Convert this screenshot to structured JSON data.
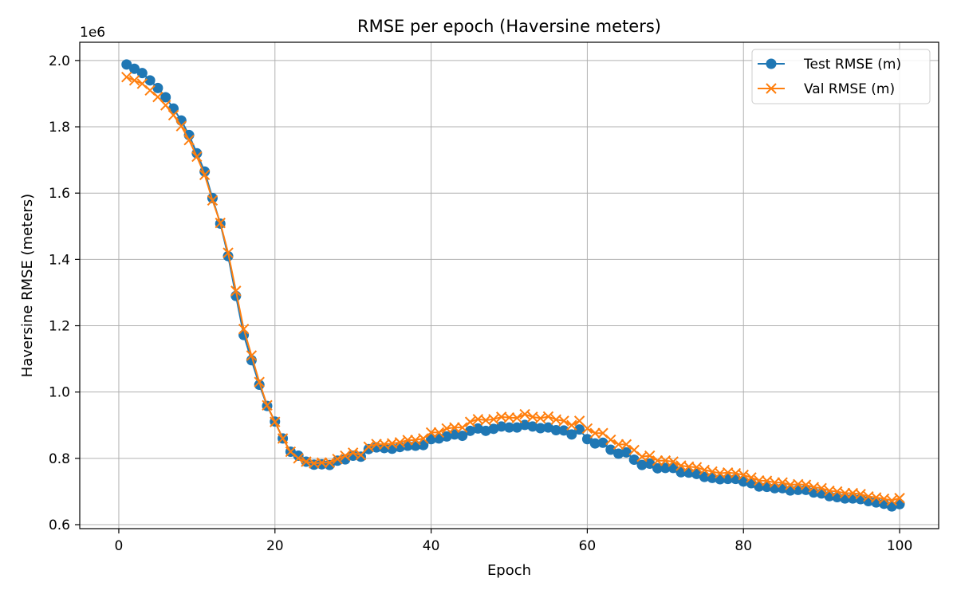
{
  "chart_data": {
    "type": "line",
    "title": "RMSE per epoch (Haversine meters)",
    "xlabel": "Epoch",
    "ylabel": "Haversine RMSE (meters)",
    "y_offset_label": "1e6",
    "xlim": [
      -5,
      105
    ],
    "ylim": [
      0.588,
      2.055
    ],
    "x_ticks": [
      0,
      20,
      40,
      60,
      80,
      100
    ],
    "x_tick_labels": [
      "0",
      "20",
      "40",
      "60",
      "80",
      "100"
    ],
    "y_ticks": [
      0.6,
      0.8,
      1.0,
      1.2,
      1.4,
      1.6,
      1.8,
      2.0
    ],
    "y_tick_labels": [
      "0.6",
      "0.8",
      "1.0",
      "1.2",
      "1.4",
      "1.6",
      "1.8",
      "2.0"
    ],
    "grid": true,
    "legend_position": "top-right",
    "x": [
      1,
      2,
      3,
      4,
      5,
      6,
      7,
      8,
      9,
      10,
      11,
      12,
      13,
      14,
      15,
      16,
      17,
      18,
      19,
      20,
      21,
      22,
      23,
      24,
      25,
      26,
      27,
      28,
      29,
      30,
      31,
      32,
      33,
      34,
      35,
      36,
      37,
      38,
      39,
      40,
      41,
      42,
      43,
      44,
      45,
      46,
      47,
      48,
      49,
      50,
      51,
      52,
      53,
      54,
      55,
      56,
      57,
      58,
      59,
      60,
      61,
      62,
      63,
      64,
      65,
      66,
      67,
      68,
      69,
      70,
      71,
      72,
      73,
      74,
      75,
      76,
      77,
      78,
      79,
      80,
      81,
      82,
      83,
      84,
      85,
      86,
      87,
      88,
      89,
      90,
      91,
      92,
      93,
      94,
      95,
      96,
      97,
      98,
      99,
      100
    ],
    "series": [
      {
        "name": "Test RMSE (m)",
        "color": "#1f77b4",
        "marker": "circle",
        "values": [
          1.988,
          1.975,
          1.962,
          1.94,
          1.917,
          1.889,
          1.855,
          1.819,
          1.775,
          1.72,
          1.665,
          1.585,
          1.508,
          1.41,
          1.29,
          1.172,
          1.096,
          1.022,
          0.958,
          0.911,
          0.86,
          0.82,
          0.808,
          0.79,
          0.781,
          0.782,
          0.78,
          0.793,
          0.797,
          0.808,
          0.805,
          0.828,
          0.833,
          0.831,
          0.829,
          0.834,
          0.838,
          0.838,
          0.84,
          0.858,
          0.86,
          0.866,
          0.872,
          0.868,
          0.883,
          0.89,
          0.883,
          0.889,
          0.896,
          0.893,
          0.893,
          0.901,
          0.896,
          0.891,
          0.893,
          0.885,
          0.884,
          0.872,
          0.887,
          0.858,
          0.845,
          0.847,
          0.826,
          0.814,
          0.818,
          0.796,
          0.78,
          0.784,
          0.77,
          0.771,
          0.771,
          0.758,
          0.757,
          0.753,
          0.744,
          0.741,
          0.737,
          0.738,
          0.738,
          0.73,
          0.725,
          0.715,
          0.714,
          0.71,
          0.71,
          0.703,
          0.705,
          0.705,
          0.697,
          0.694,
          0.686,
          0.683,
          0.679,
          0.679,
          0.677,
          0.671,
          0.667,
          0.663,
          0.655,
          0.662
        ]
      },
      {
        "name": "Val RMSE (m)",
        "color": "#ff7f0e",
        "marker": "x",
        "values": [
          1.95,
          1.94,
          1.93,
          1.91,
          1.89,
          1.865,
          1.835,
          1.802,
          1.76,
          1.71,
          1.655,
          1.578,
          1.51,
          1.42,
          1.305,
          1.19,
          1.11,
          1.03,
          0.96,
          0.91,
          0.86,
          0.82,
          0.8,
          0.79,
          0.785,
          0.787,
          0.787,
          0.798,
          0.808,
          0.817,
          0.81,
          0.835,
          0.843,
          0.842,
          0.845,
          0.848,
          0.855,
          0.855,
          0.86,
          0.878,
          0.878,
          0.89,
          0.893,
          0.893,
          0.91,
          0.918,
          0.915,
          0.918,
          0.925,
          0.923,
          0.922,
          0.933,
          0.925,
          0.921,
          0.926,
          0.917,
          0.913,
          0.9,
          0.913,
          0.89,
          0.876,
          0.876,
          0.856,
          0.842,
          0.842,
          0.825,
          0.805,
          0.808,
          0.793,
          0.793,
          0.79,
          0.778,
          0.775,
          0.773,
          0.765,
          0.76,
          0.755,
          0.757,
          0.755,
          0.75,
          0.742,
          0.733,
          0.732,
          0.727,
          0.727,
          0.72,
          0.722,
          0.72,
          0.713,
          0.71,
          0.702,
          0.7,
          0.695,
          0.695,
          0.692,
          0.685,
          0.682,
          0.678,
          0.673,
          0.68
        ]
      }
    ]
  }
}
